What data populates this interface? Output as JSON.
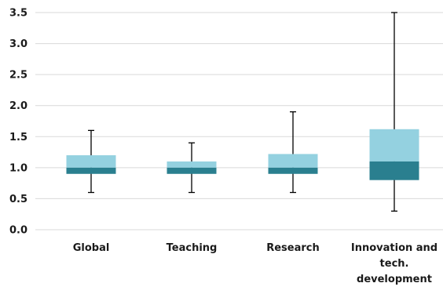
{
  "colors": {
    "upper_box": "#94D1E0",
    "lower_box": "#2A7F8F",
    "gridline": "#D9D9D9",
    "whisker": "#000000",
    "text": "#1A1A1A"
  },
  "chart_data": {
    "type": "boxplot",
    "title": "",
    "xlabel": "",
    "ylabel": "",
    "ylim": [
      0,
      3.5
    ],
    "y_ticks": [
      "0.0",
      "0.5",
      "1.0",
      "1.5",
      "2.0",
      "2.5",
      "3.0",
      "3.5"
    ],
    "grid": true,
    "legend": "none",
    "categories": [
      [
        "Global"
      ],
      [
        "Teaching"
      ],
      [
        "Research"
      ],
      [
        "Innovation and",
        "tech.",
        "development"
      ]
    ],
    "boxes": [
      {
        "min": 0.6,
        "q1": 0.9,
        "median": 1.0,
        "q3": 1.2,
        "max": 1.6
      },
      {
        "min": 0.6,
        "q1": 0.9,
        "median": 1.0,
        "q3": 1.1,
        "max": 1.4
      },
      {
        "min": 0.6,
        "q1": 0.9,
        "median": 1.0,
        "q3": 1.22,
        "max": 1.9
      },
      {
        "min": 0.3,
        "q1": 0.8,
        "median": 1.1,
        "q3": 1.62,
        "max": 3.5
      }
    ]
  }
}
